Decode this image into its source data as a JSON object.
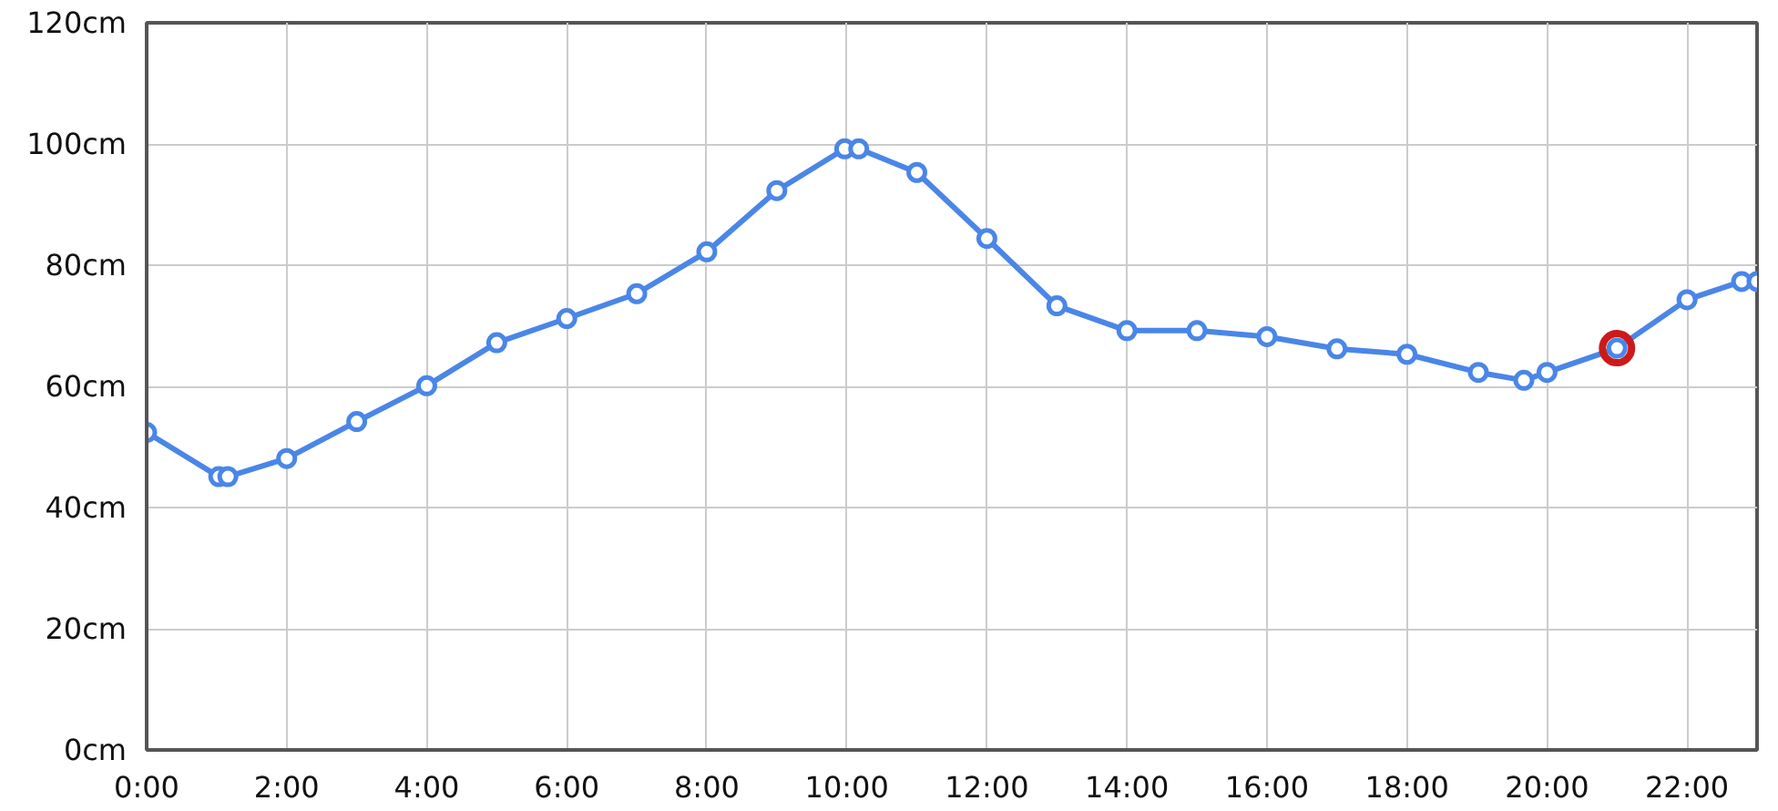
{
  "chart_data": {
    "type": "line",
    "x": [
      0,
      1.03,
      1.16,
      2,
      3,
      4,
      5,
      6,
      7,
      8,
      9,
      9.97,
      10.17,
      11,
      12,
      13,
      14,
      15,
      16,
      17,
      18,
      19.02,
      19.67,
      20,
      21,
      22,
      22.78,
      23
    ],
    "series": [
      {
        "color": "#4a86e8",
        "values": [
          52.4,
          45.1,
          45.1,
          48.1,
          54.2,
          60.1,
          67.2,
          71.2,
          75.3,
          82.2,
          92.3,
          99.2,
          99.2,
          95.3,
          84.4,
          73.3,
          69.2,
          69.2,
          68.2,
          66.2,
          65.3,
          62.3,
          61,
          62.3,
          66.3,
          74.3,
          77.3,
          77.3
        ]
      },
      {
        "type": "scatter",
        "color": "#cc1a1a",
        "x": [
          21
        ],
        "values": [
          66.3
        ]
      }
    ],
    "xlim": [
      0,
      23
    ],
    "ylim": [
      0,
      120
    ],
    "xticks": [
      {
        "value": 0,
        "label": "0:00"
      },
      {
        "value": 2,
        "label": "2:00"
      },
      {
        "value": 4,
        "label": "4:00"
      },
      {
        "value": 6,
        "label": "6:00"
      },
      {
        "value": 8,
        "label": "8:00"
      },
      {
        "value": 10,
        "label": "10:00"
      },
      {
        "value": 12,
        "label": "12:00"
      },
      {
        "value": 14,
        "label": "14:00"
      },
      {
        "value": 16,
        "label": "16:00"
      },
      {
        "value": 18,
        "label": "18:00"
      },
      {
        "value": 20,
        "label": "20:00"
      },
      {
        "value": 22,
        "label": "22:00"
      }
    ],
    "yticks": [
      {
        "value": 0,
        "label": "0cm"
      },
      {
        "value": 20,
        "label": "20cm"
      },
      {
        "value": 40,
        "label": "40cm"
      },
      {
        "value": 60,
        "label": "60cm"
      },
      {
        "value": 80,
        "label": "80cm"
      },
      {
        "value": 100,
        "label": "100cm"
      },
      {
        "value": 120,
        "label": "120cm"
      }
    ],
    "grid": true,
    "marker": "circle",
    "line_style": "solid"
  }
}
